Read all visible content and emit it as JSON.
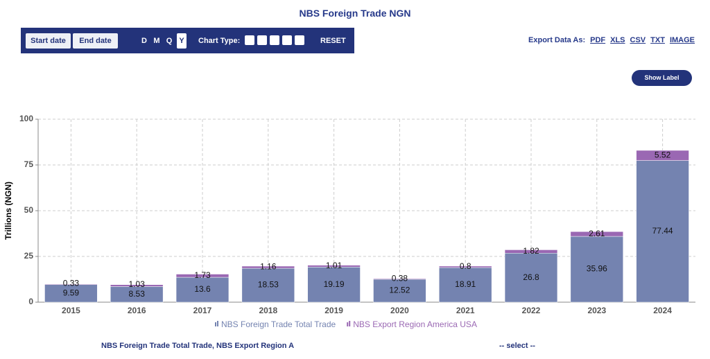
{
  "page_title": "NBS Foreign Trade NGN",
  "toolbar": {
    "buttons": [
      "Start date",
      "End date"
    ],
    "frequencies": [
      "D",
      "M",
      "Q",
      "Y"
    ],
    "chart_type_label": "Chart Type:",
    "reset": "RESET"
  },
  "export": {
    "label": "Export Data As:",
    "formats": [
      "PDF",
      "XLS",
      "CSV",
      "TXT",
      "IMAGE"
    ]
  },
  "show_label": "Show Label",
  "chart_data": {
    "type": "bar",
    "stacked": true,
    "y_label": "Trillions (NGN)",
    "categories": [
      "2015",
      "2016",
      "2017",
      "2018",
      "2019",
      "2020",
      "2021",
      "2022",
      "2023",
      "2024"
    ],
    "series": [
      {
        "name": "NBS Foreign Trade Total Trade",
        "color": "#7483b0",
        "values": [
          9.59,
          8.53,
          13.6,
          18.53,
          19.19,
          12.52,
          18.91,
          26.8,
          35.96,
          77.44
        ]
      },
      {
        "name": "NBS Export Region America USA",
        "color": "#9a68b3",
        "values": [
          0.33,
          1.03,
          1.73,
          1.16,
          1.01,
          0.38,
          0.8,
          1.82,
          2.61,
          5.52
        ]
      }
    ],
    "ylim": [
      0,
      100
    ],
    "yticks": [
      0,
      25,
      50,
      75,
      100
    ],
    "grid": true
  },
  "footer": {
    "selection": "NBS Foreign Trade Total Trade, NBS Export Region A",
    "select": "-- select --"
  }
}
